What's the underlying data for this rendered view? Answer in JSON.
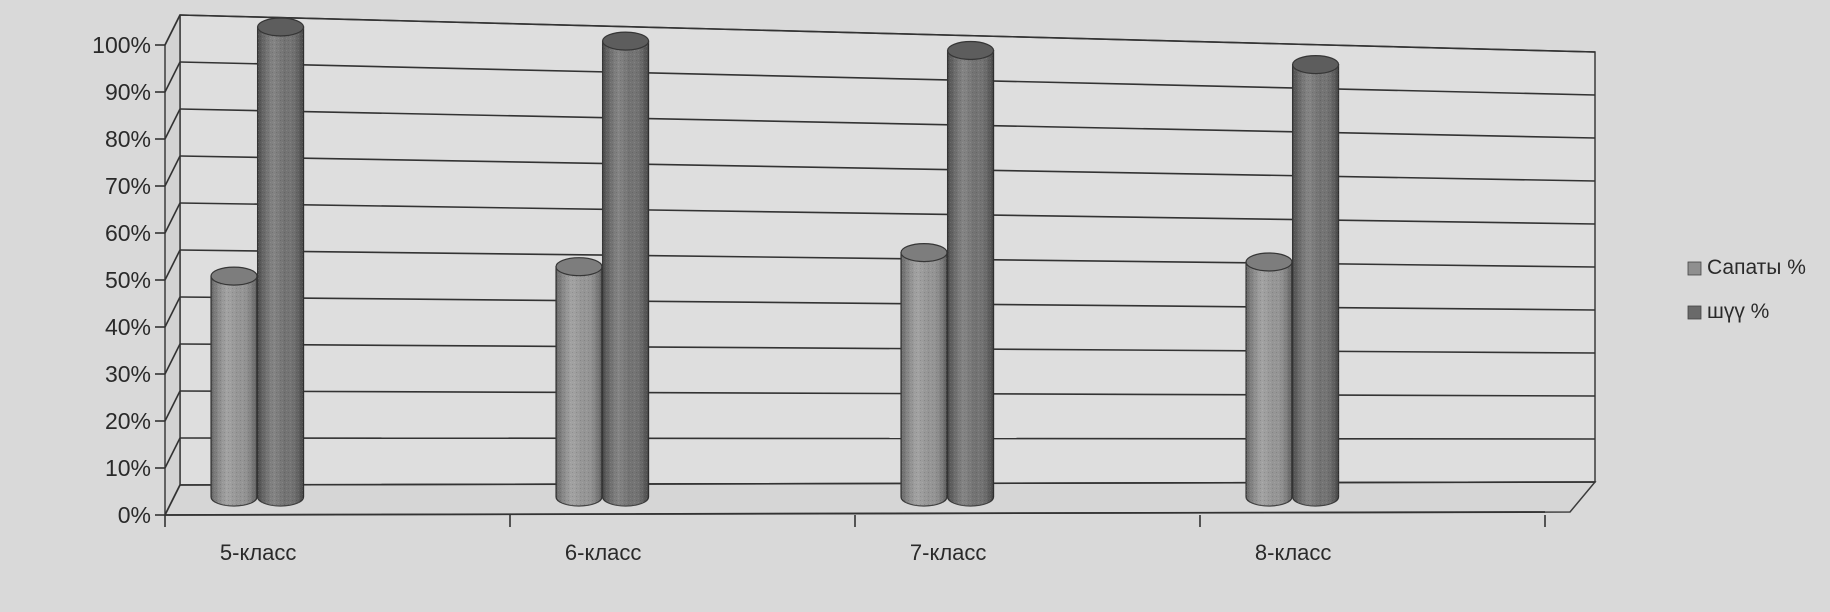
{
  "chart_data": {
    "type": "bar",
    "style": "3d-cylinder",
    "categories": [
      "5-класс",
      "6-класс",
      "7-класс",
      "8-класс"
    ],
    "series": [
      {
        "name": "Сапаты %",
        "values": [
          47,
          49,
          52,
          50
        ],
        "color": "#8f8f8f"
      },
      {
        "name": "шүү %",
        "values": [
          100,
          97,
          95,
          92
        ],
        "color": "#6a6a6a"
      }
    ],
    "yticks": [
      "0%",
      "10%",
      "20%",
      "30%",
      "40%",
      "50%",
      "60%",
      "70%",
      "80%",
      "90%",
      "100%"
    ],
    "ylim": [
      0,
      100
    ],
    "grid": true,
    "legend": "right"
  }
}
